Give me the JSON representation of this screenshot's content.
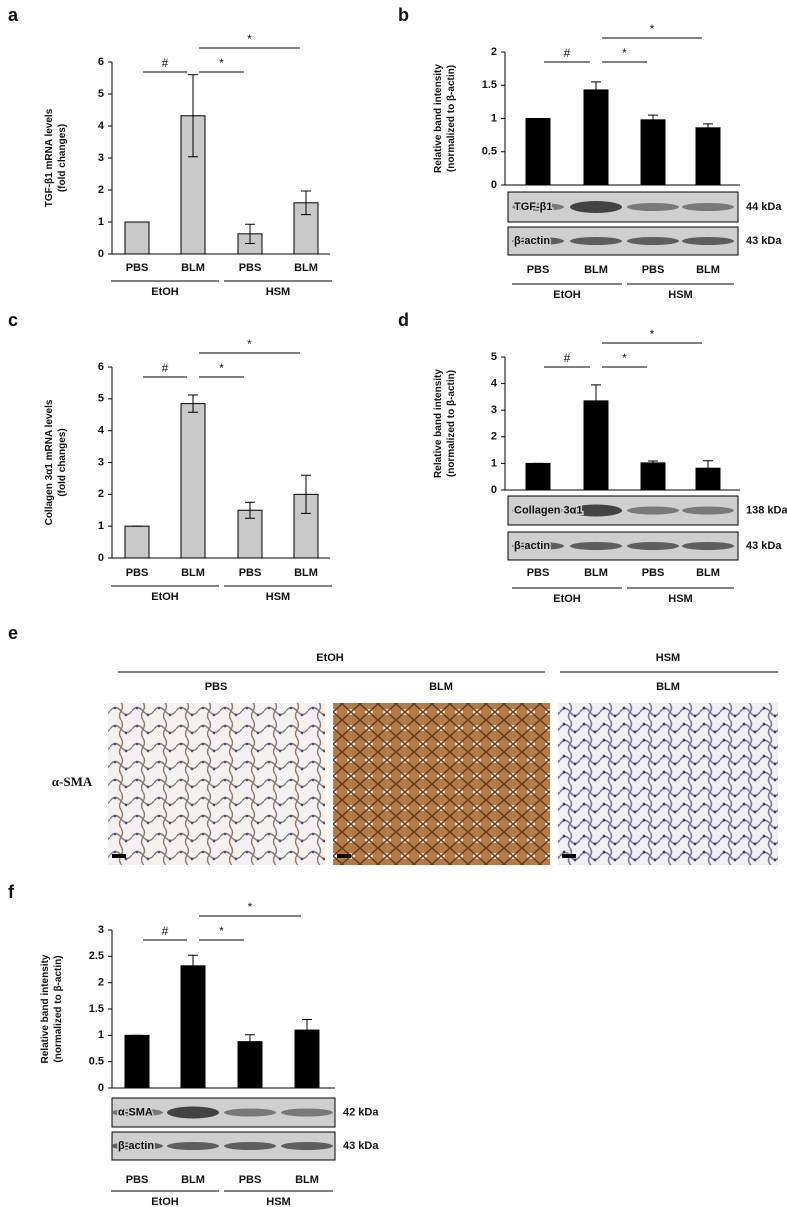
{
  "chart_data": [
    {
      "type": "bar",
      "panel": "a",
      "ylabel": [
        "TGF-β1 mRNA levels",
        "(fold changes)"
      ],
      "categories": [
        "PBS",
        "BLM",
        "PBS",
        "BLM"
      ],
      "groups": [
        "EtOH",
        "HSM"
      ],
      "values": [
        1,
        4.32,
        0.63,
        1.6
      ],
      "errors": [
        0,
        1.28,
        0.3,
        0.37
      ],
      "color": "#c8c8c8",
      "ylim": [
        0,
        6
      ],
      "yticks": [
        0,
        1,
        2,
        3,
        4,
        5,
        6
      ],
      "annotations": [
        "#",
        "*",
        "*"
      ]
    },
    {
      "type": "bar",
      "panel": "b",
      "ylabel": [
        "Relative band intensity",
        "(normalized to β-actin)"
      ],
      "categories": [
        "PBS",
        "BLM",
        "PBS",
        "BLM"
      ],
      "groups": [
        "EtOH",
        "HSM"
      ],
      "values": [
        1,
        1.43,
        0.98,
        0.86
      ],
      "errors": [
        0,
        0.12,
        0.07,
        0.06
      ],
      "color": "#000000",
      "ylim": [
        0,
        2
      ],
      "yticks": [
        0,
        0.5,
        1,
        1.5,
        2
      ],
      "annotations": [
        "#",
        "*",
        "*"
      ],
      "blots": [
        {
          "label": "TGF-β1",
          "size": "44 kDa"
        },
        {
          "label": "β-actin",
          "size": "43 kDa"
        }
      ]
    },
    {
      "type": "bar",
      "panel": "c",
      "ylabel": [
        "Collagen 3α1 mRNA levels",
        "(fold changes)"
      ],
      "categories": [
        "PBS",
        "BLM",
        "PBS",
        "BLM"
      ],
      "groups": [
        "EtOH",
        "HSM"
      ],
      "values": [
        1,
        4.85,
        1.5,
        2
      ],
      "errors": [
        0,
        0.27,
        0.25,
        0.6
      ],
      "color": "#c8c8c8",
      "ylim": [
        0,
        6
      ],
      "yticks": [
        0,
        1,
        2,
        3,
        4,
        5,
        6
      ],
      "annotations": [
        "#",
        "*",
        "*"
      ]
    },
    {
      "type": "bar",
      "panel": "d",
      "ylabel": [
        "Relative band intensity",
        "(normalized to β-actin)"
      ],
      "categories": [
        "PBS",
        "BLM",
        "PBS",
        "BLM"
      ],
      "groups": [
        "EtOH",
        "HSM"
      ],
      "values": [
        1,
        3.35,
        1.02,
        0.82
      ],
      "errors": [
        0,
        0.6,
        0.07,
        0.28
      ],
      "color": "#000000",
      "ylim": [
        0,
        5
      ],
      "yticks": [
        0,
        1,
        2,
        3,
        4,
        5
      ],
      "annotations": [
        "#",
        "*",
        "*"
      ],
      "blots": [
        {
          "label": "Collagen 3α1",
          "size": "138 kDa"
        },
        {
          "label": "β-actin",
          "size": "43 kDa"
        }
      ]
    },
    {
      "type": "bar",
      "panel": "f",
      "ylabel": [
        "Relative band intensity",
        "(normalized to β-actin)"
      ],
      "categories": [
        "PBS",
        "BLM",
        "PBS",
        "BLM"
      ],
      "groups": [
        "EtOH",
        "HSM"
      ],
      "values": [
        1,
        2.32,
        0.88,
        1.1
      ],
      "errors": [
        0,
        0.2,
        0.13,
        0.2
      ],
      "color": "#000000",
      "ylim": [
        0,
        3
      ],
      "yticks": [
        0,
        0.5,
        1,
        1.5,
        2,
        2.5,
        3
      ],
      "annotations": [
        "#",
        "*",
        "*"
      ],
      "blots": [
        {
          "label": "α-SMA",
          "size": "42 kDa"
        },
        {
          "label": "β-actin",
          "size": "43 kDa"
        }
      ]
    }
  ],
  "image_panel": {
    "panel": "e",
    "groups": [
      "EtOH",
      "HSM"
    ],
    "columns": [
      "PBS",
      "BLM",
      "BLM"
    ],
    "row_label": "α-SMA"
  }
}
